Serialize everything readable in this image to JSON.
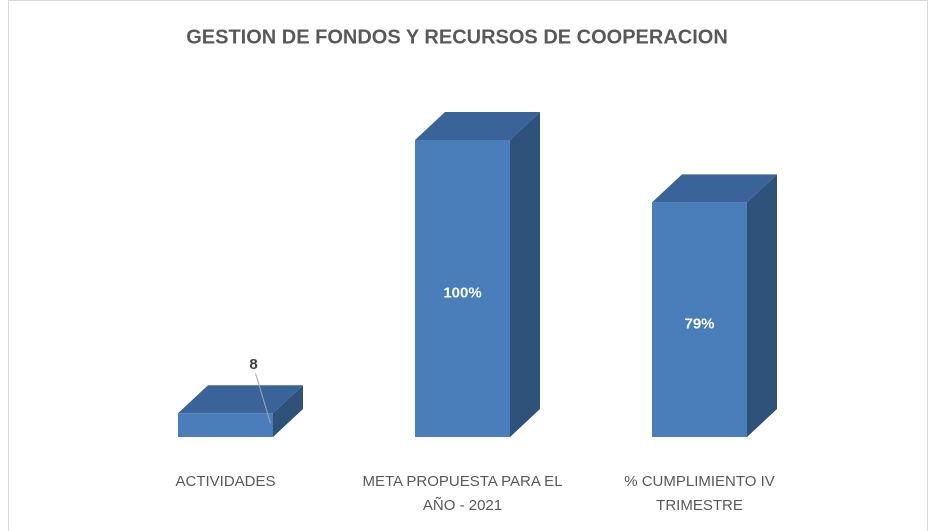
{
  "chart_data": {
    "type": "bar3d",
    "title": "GESTION DE FONDOS Y RECURSOS DE COOPERACION",
    "categories": [
      "ACTIVIDADES",
      "META PROPUESTA PARA EL AÑO - 2021",
      "% CUMPLIMIENTO IV TRIMESTRE"
    ],
    "values": [
      8,
      100,
      79
    ],
    "value_labels": [
      "8",
      "100%",
      "79%"
    ],
    "color": "#4a7ebb",
    "ylim": [
      0,
      100
    ]
  }
}
